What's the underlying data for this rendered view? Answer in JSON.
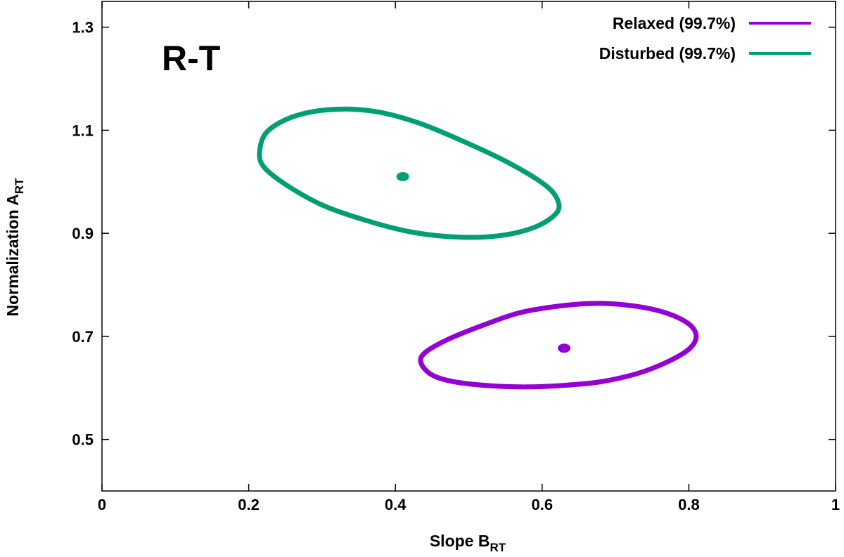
{
  "chart_data": {
    "type": "scatter",
    "panel_label": "R-T",
    "xlabel": {
      "main": "Slope B",
      "sub": "RT"
    },
    "ylabel": {
      "main": "Normalization A",
      "sub": "RT"
    },
    "xlim": [
      0,
      1
    ],
    "ylim": [
      0.4,
      1.35
    ],
    "xticks": [
      {
        "value": 0,
        "label": "0"
      },
      {
        "value": 0.2,
        "label": "0.2"
      },
      {
        "value": 0.4,
        "label": "0.4"
      },
      {
        "value": 0.6,
        "label": "0.6"
      },
      {
        "value": 0.8,
        "label": "0.8"
      },
      {
        "value": 1,
        "label": "1"
      }
    ],
    "yticks": [
      {
        "value": 0.5,
        "label": "0.5"
      },
      {
        "value": 0.7,
        "label": "0.7"
      },
      {
        "value": 0.9,
        "label": "0.9"
      },
      {
        "value": 1.1,
        "label": "1.1"
      },
      {
        "value": 1.3,
        "label": "1.3"
      }
    ],
    "grid": false,
    "legend_position": "top-right",
    "series": [
      {
        "name": "Relaxed (99.7%)",
        "color": "#9400d3",
        "best_fit": {
          "x": 0.63,
          "y": 0.677
        },
        "contour": [
          [
            0.81,
            0.7
          ],
          [
            0.8,
            0.675
          ],
          [
            0.77,
            0.65
          ],
          [
            0.73,
            0.628
          ],
          [
            0.68,
            0.612
          ],
          [
            0.63,
            0.605
          ],
          [
            0.58,
            0.602
          ],
          [
            0.53,
            0.604
          ],
          [
            0.48,
            0.612
          ],
          [
            0.45,
            0.625
          ],
          [
            0.435,
            0.648
          ],
          [
            0.44,
            0.668
          ],
          [
            0.47,
            0.693
          ],
          [
            0.52,
            0.722
          ],
          [
            0.57,
            0.746
          ],
          [
            0.63,
            0.76
          ],
          [
            0.68,
            0.764
          ],
          [
            0.73,
            0.758
          ],
          [
            0.77,
            0.745
          ],
          [
            0.8,
            0.724
          ],
          [
            0.81,
            0.7
          ]
        ]
      },
      {
        "name": "Disturbed (99.7%)",
        "color": "#009e73",
        "best_fit": {
          "x": 0.41,
          "y": 1.01
        },
        "contour": [
          [
            0.215,
            1.06
          ],
          [
            0.22,
            1.03
          ],
          [
            0.25,
            0.995
          ],
          [
            0.3,
            0.955
          ],
          [
            0.36,
            0.925
          ],
          [
            0.42,
            0.903
          ],
          [
            0.48,
            0.893
          ],
          [
            0.54,
            0.895
          ],
          [
            0.59,
            0.912
          ],
          [
            0.62,
            0.94
          ],
          [
            0.62,
            0.968
          ],
          [
            0.6,
            0.998
          ],
          [
            0.55,
            1.04
          ],
          [
            0.49,
            1.08
          ],
          [
            0.43,
            1.115
          ],
          [
            0.37,
            1.137
          ],
          [
            0.31,
            1.14
          ],
          [
            0.26,
            1.126
          ],
          [
            0.225,
            1.097
          ],
          [
            0.215,
            1.06
          ]
        ]
      }
    ]
  }
}
